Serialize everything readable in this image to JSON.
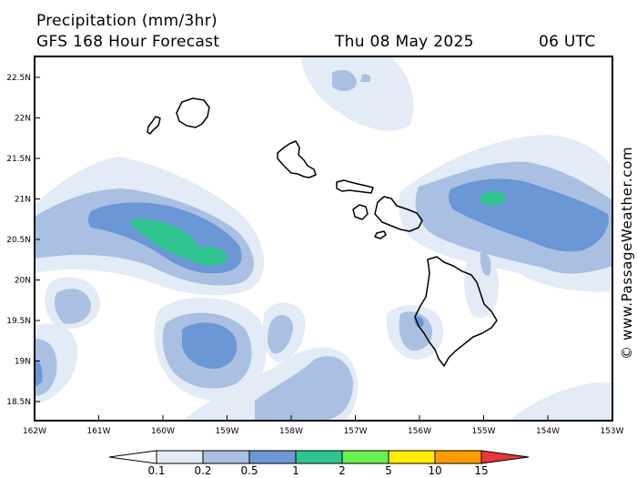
{
  "header": {
    "title": "Precipitation (mm/3hr)",
    "subtitle": "GFS 168 Hour Forecast",
    "date": "Thu 08 May 2025",
    "time": "06 UTC"
  },
  "credit": "© www.PassageWeather.com",
  "axes": {
    "lat_labels": [
      "22.5N",
      "22N",
      "21.5N",
      "21N",
      "20.5N",
      "20N",
      "19.5N",
      "19N",
      "18.5N"
    ],
    "lon_labels": [
      "162W",
      "161W",
      "160W",
      "159W",
      "158W",
      "157W",
      "156W",
      "155W",
      "154W",
      "153W"
    ]
  },
  "legend": {
    "labels": [
      "0.1",
      "0.2",
      "0.5",
      "1",
      "2",
      "5",
      "10",
      "15"
    ],
    "colors": [
      "#ffffff",
      "#e3ebf6",
      "#a9c0e2",
      "#6b97d6",
      "#2fc38f",
      "#69f24f",
      "#ffec00",
      "#ff9a00",
      "#e8363f"
    ]
  },
  "colors": {
    "light": "#e3ebf6",
    "medium": "#a9c0e2",
    "blue": "#6b97d6",
    "green": "#2fc38f",
    "land": "#000000"
  }
}
